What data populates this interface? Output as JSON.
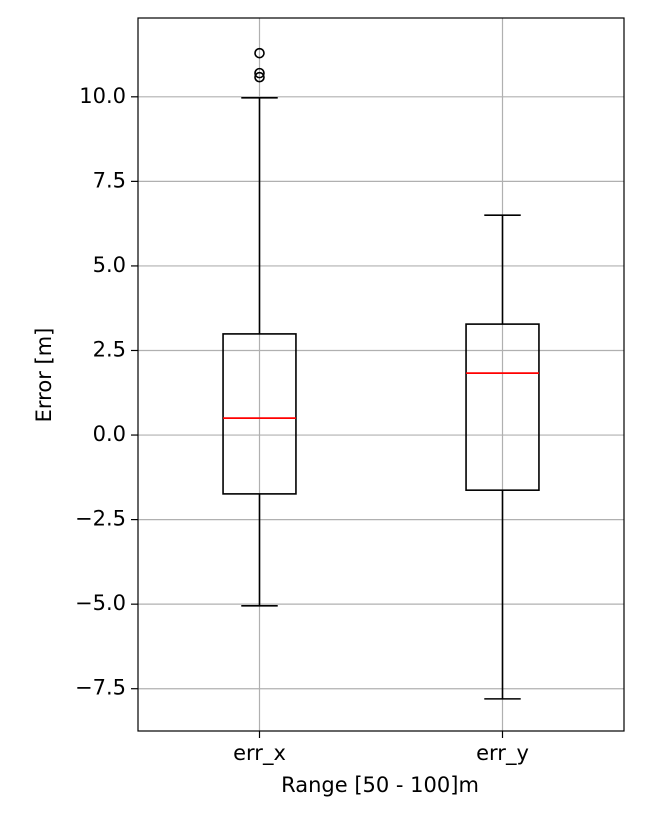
{
  "chart_data": {
    "type": "box",
    "xlabel": "Range [50 - 100]m",
    "ylabel": "Error [m]",
    "categories": [
      "err_x",
      "err_y"
    ],
    "boxes": [
      {
        "whislo": -5.05,
        "q1": -1.74,
        "med": 0.5,
        "q3": 2.99,
        "whishi": 9.97,
        "fliers": [
          11.29,
          10.7,
          10.58
        ]
      },
      {
        "whislo": -7.8,
        "q1": -1.63,
        "med": 1.83,
        "q3": 3.28,
        "whishi": 6.5,
        "fliers": []
      }
    ],
    "box_color": "#000000",
    "median_color": "#ff0000",
    "ylim": [
      -8.75,
      12.33
    ],
    "yticks": [
      {
        "value": -7.5,
        "label": "−7.5"
      },
      {
        "value": -5,
        "label": "−5.0"
      },
      {
        "value": -2.5,
        "label": "−2.5"
      },
      {
        "value": 0,
        "label": "0.0"
      },
      2.5,
      {
        "value": 5,
        "label": "5.0"
      },
      7.5,
      {
        "value": 10,
        "label": "10.0"
      }
    ],
    "grid": true
  }
}
